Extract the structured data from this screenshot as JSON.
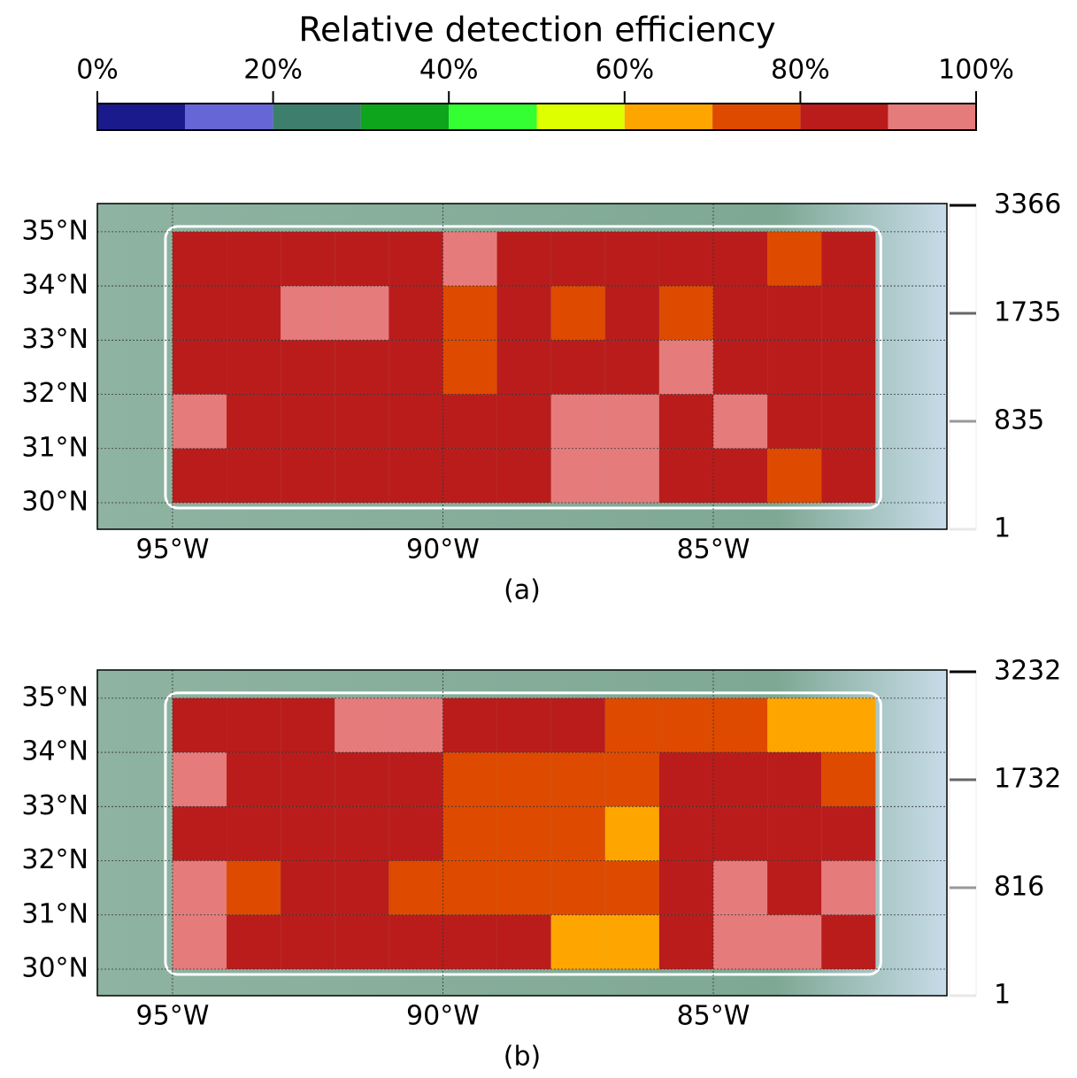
{
  "colorbar": {
    "title": "Relative detection efficiency",
    "bins": [
      0,
      10,
      20,
      30,
      40,
      50,
      60,
      70,
      80,
      90,
      100
    ],
    "colors": [
      "#1a1a8c",
      "#6666d6",
      "#3d7f6c",
      "#0ea51c",
      "#33ff33",
      "#deff00",
      "#ffa500",
      "#de4a00",
      "#ba1c1c",
      "#e67b7b"
    ],
    "ticks": [
      {
        "value": 0,
        "label": "0%"
      },
      {
        "value": 20,
        "label": "20%"
      },
      {
        "value": 40,
        "label": "40%"
      },
      {
        "value": 60,
        "label": "60%"
      },
      {
        "value": 80,
        "label": "80%"
      },
      {
        "value": 100,
        "label": "100%"
      }
    ]
  },
  "chart_data": [
    {
      "type": "heatmap",
      "label": "(a)",
      "x_edges": [
        -95,
        -94,
        -93,
        -92,
        -91,
        -90,
        -89,
        -88,
        -87,
        -86,
        -85,
        -84,
        -83,
        -82
      ],
      "y_edges": [
        35,
        34,
        33,
        32,
        31,
        30
      ],
      "values": [
        [
          85,
          85,
          85,
          85,
          85,
          95,
          85,
          85,
          85,
          85,
          85,
          75,
          85
        ],
        [
          85,
          85,
          95,
          95,
          85,
          75,
          85,
          75,
          85,
          75,
          85,
          85,
          85
        ],
        [
          85,
          85,
          85,
          85,
          85,
          75,
          85,
          85,
          85,
          95,
          85,
          85,
          85
        ],
        [
          95,
          85,
          85,
          85,
          85,
          85,
          85,
          95,
          95,
          85,
          95,
          85,
          85
        ],
        [
          85,
          85,
          85,
          85,
          85,
          85,
          85,
          95,
          95,
          85,
          85,
          75,
          85
        ]
      ],
      "xlim": [
        -96.39,
        -80.68
      ],
      "ylim": [
        29.51,
        35.52
      ],
      "xticks": [
        {
          "value": -95,
          "label": "95°W"
        },
        {
          "value": -90,
          "label": "90°W"
        },
        {
          "value": -85,
          "label": "85°W"
        }
      ],
      "yticks": [
        {
          "value": 30,
          "label": "30°N"
        },
        {
          "value": 31,
          "label": "31°N"
        },
        {
          "value": 32,
          "label": "32°N"
        },
        {
          "value": 33,
          "label": "33°N"
        },
        {
          "value": 34,
          "label": "34°N"
        },
        {
          "value": 35,
          "label": "35°N"
        }
      ],
      "contour_levels": [
        1,
        835,
        1735,
        3366
      ],
      "contour_colors": [
        "#e8e8e8",
        "#999999",
        "#666666",
        "#000000"
      ]
    },
    {
      "type": "heatmap",
      "label": "(b)",
      "x_edges": [
        -95,
        -94,
        -93,
        -92,
        -91,
        -90,
        -89,
        -88,
        -87,
        -86,
        -85,
        -84,
        -83,
        -82
      ],
      "y_edges": [
        35,
        34,
        33,
        32,
        31,
        30
      ],
      "values": [
        [
          85,
          85,
          85,
          95,
          95,
          85,
          85,
          85,
          75,
          75,
          75,
          65,
          65
        ],
        [
          95,
          85,
          85,
          85,
          85,
          75,
          75,
          75,
          75,
          85,
          85,
          85,
          75
        ],
        [
          85,
          85,
          85,
          85,
          85,
          75,
          75,
          75,
          65,
          85,
          85,
          85,
          85
        ],
        [
          95,
          75,
          85,
          85,
          75,
          75,
          75,
          75,
          75,
          85,
          95,
          85,
          95
        ],
        [
          95,
          85,
          85,
          85,
          85,
          85,
          85,
          65,
          65,
          85,
          95,
          95,
          85
        ]
      ],
      "xlim": [
        -96.39,
        -80.68
      ],
      "ylim": [
        29.51,
        35.52
      ],
      "xticks": [
        {
          "value": -95,
          "label": "95°W"
        },
        {
          "value": -90,
          "label": "90°W"
        },
        {
          "value": -85,
          "label": "85°W"
        }
      ],
      "yticks": [
        {
          "value": 30,
          "label": "30°N"
        },
        {
          "value": 31,
          "label": "31°N"
        },
        {
          "value": 32,
          "label": "32°N"
        },
        {
          "value": 33,
          "label": "33°N"
        },
        {
          "value": 34,
          "label": "34°N"
        },
        {
          "value": 35,
          "label": "35°N"
        }
      ],
      "contour_levels": [
        1,
        816,
        1732,
        3232
      ],
      "contour_colors": [
        "#e8e8e8",
        "#999999",
        "#666666",
        "#000000"
      ]
    }
  ]
}
